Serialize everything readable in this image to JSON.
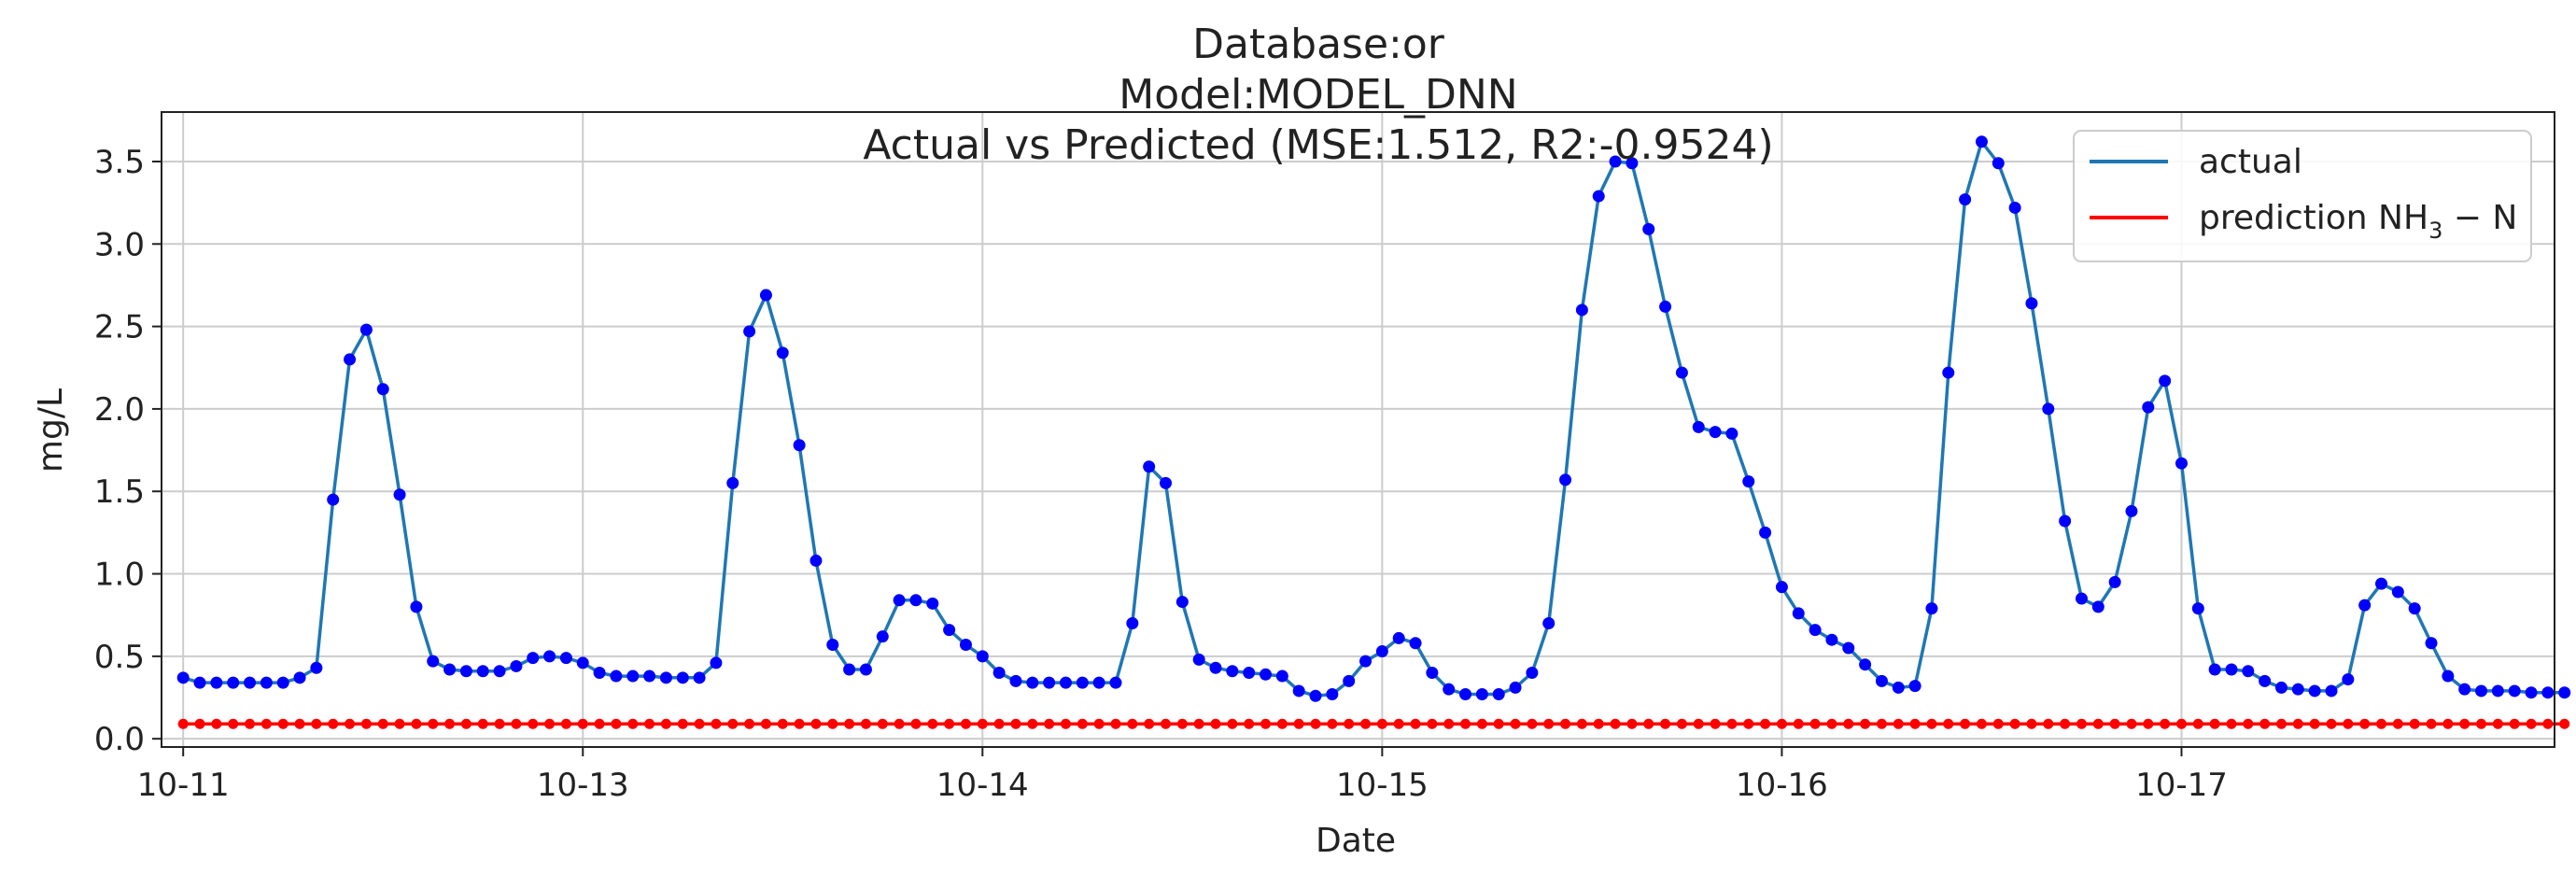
{
  "chart_data": {
    "type": "line",
    "title_lines": [
      "Database:or",
      "Model:MODEL_DNN",
      "Actual vs Predicted (MSE:1.512, R2:-0.9524)"
    ],
    "xlabel": "Date",
    "ylabel": "mg/L",
    "x_ticks": [
      "10-11",
      "10-13",
      "10-14",
      "10-15",
      "10-16",
      "10-17"
    ],
    "y_ticks": [
      "0.0",
      "0.5",
      "1.0",
      "1.5",
      "2.0",
      "2.5",
      "3.0",
      "3.5"
    ],
    "ylim": [
      -0.05,
      3.8
    ],
    "x_index_range": [
      -1.3,
      142.4
    ],
    "x_tick_index": [
      0,
      24,
      48,
      72,
      96,
      120
    ],
    "grid": true,
    "legend_position": "top-right",
    "legend": {
      "actual_label": "actual",
      "prediction_main": "prediction NH",
      "prediction_sub": "3",
      "prediction_suffix": " − N"
    },
    "colors": {
      "actual": "#1f77b4",
      "prediction": "#ff0000",
      "points": "#0000ff",
      "grid": "#cccccc",
      "frame": "#222222"
    },
    "series": [
      {
        "name": "actual",
        "values": [
          0.37,
          0.34,
          0.34,
          0.34,
          0.34,
          0.34,
          0.34,
          0.37,
          0.43,
          1.45,
          2.3,
          2.48,
          2.12,
          1.48,
          0.8,
          0.47,
          0.42,
          0.41,
          0.41,
          0.41,
          0.44,
          0.49,
          0.5,
          0.49,
          0.46,
          0.4,
          0.38,
          0.38,
          0.38,
          0.37,
          0.37,
          0.37,
          0.46,
          1.55,
          2.47,
          2.69,
          2.34,
          1.78,
          1.08,
          0.57,
          0.42,
          0.42,
          0.62,
          0.84,
          0.84,
          0.82,
          0.66,
          0.57,
          0.5,
          0.4,
          0.35,
          0.34,
          0.34,
          0.34,
          0.34,
          0.34,
          0.34,
          0.7,
          1.65,
          1.55,
          0.83,
          0.48,
          0.43,
          0.41,
          0.4,
          0.39,
          0.38,
          0.29,
          0.26,
          0.27,
          0.35,
          0.47,
          0.53,
          0.61,
          0.58,
          0.4,
          0.3,
          0.27,
          0.27,
          0.27,
          0.31,
          0.4,
          0.7,
          1.57,
          2.6,
          3.29,
          3.5,
          3.49,
          3.09,
          2.62,
          2.22,
          1.89,
          1.86,
          1.85,
          1.56,
          1.25,
          0.92,
          0.76,
          0.66,
          0.6,
          0.55,
          0.45,
          0.35,
          0.31,
          0.32,
          0.79,
          2.22,
          3.27,
          3.62,
          3.49,
          3.22,
          2.64,
          2.0,
          1.32,
          0.85,
          0.8,
          0.95,
          1.38,
          2.01,
          2.17,
          1.67,
          0.79,
          0.42,
          0.42,
          0.41,
          0.35,
          0.31,
          0.3,
          0.29,
          0.29,
          0.36,
          0.81,
          0.94,
          0.89,
          0.79,
          0.58,
          0.38,
          0.3,
          0.29,
          0.29,
          0.29,
          0.28,
          0.28,
          0.28
        ]
      },
      {
        "name": "prediction NH3 − N",
        "values": [
          0.09,
          0.09,
          0.09,
          0.09,
          0.09,
          0.09,
          0.09,
          0.09,
          0.09,
          0.09,
          0.09,
          0.09,
          0.09,
          0.09,
          0.09,
          0.09,
          0.09,
          0.09,
          0.09,
          0.09,
          0.09,
          0.09,
          0.09,
          0.09,
          0.09,
          0.09,
          0.09,
          0.09,
          0.09,
          0.09,
          0.09,
          0.09,
          0.09,
          0.09,
          0.09,
          0.09,
          0.09,
          0.09,
          0.09,
          0.09,
          0.09,
          0.09,
          0.09,
          0.09,
          0.09,
          0.09,
          0.09,
          0.09,
          0.09,
          0.09,
          0.09,
          0.09,
          0.09,
          0.09,
          0.09,
          0.09,
          0.09,
          0.09,
          0.09,
          0.09,
          0.09,
          0.09,
          0.09,
          0.09,
          0.09,
          0.09,
          0.09,
          0.09,
          0.09,
          0.09,
          0.09,
          0.09,
          0.09,
          0.09,
          0.09,
          0.09,
          0.09,
          0.09,
          0.09,
          0.09,
          0.09,
          0.09,
          0.09,
          0.09,
          0.09,
          0.09,
          0.09,
          0.09,
          0.09,
          0.09,
          0.09,
          0.09,
          0.09,
          0.09,
          0.09,
          0.09,
          0.09,
          0.09,
          0.09,
          0.09,
          0.09,
          0.09,
          0.09,
          0.09,
          0.09,
          0.09,
          0.09,
          0.09,
          0.09,
          0.09,
          0.09,
          0.09,
          0.09,
          0.09,
          0.09,
          0.09,
          0.09,
          0.09,
          0.09,
          0.09,
          0.09,
          0.09,
          0.09,
          0.09,
          0.09,
          0.09,
          0.09,
          0.09,
          0.09,
          0.09,
          0.09,
          0.09,
          0.09,
          0.09,
          0.09,
          0.09,
          0.09,
          0.09,
          0.09,
          0.09,
          0.09,
          0.09,
          0.09,
          0.09
        ]
      }
    ]
  }
}
